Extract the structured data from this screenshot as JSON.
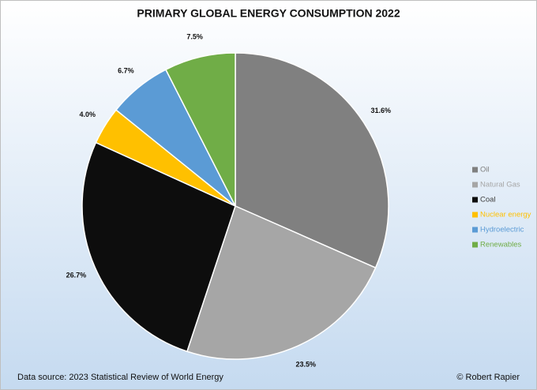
{
  "chart_data": {
    "type": "pie",
    "title": "PRIMARY GLOBAL ENERGY CONSUMPTION 2022",
    "source": "Data source: 2023 Statistical Review of World Energy",
    "credit": "© Robert Rapier",
    "categories": [
      "Oil",
      "Natural Gas",
      "Coal",
      "Nuclear energy",
      "Hydroelectric",
      "Renewables"
    ],
    "values": [
      31.6,
      23.5,
      26.7,
      4.0,
      6.7,
      7.5
    ],
    "value_labels": [
      "31.6%",
      "23.5%",
      "26.7%",
      "4.0%",
      "6.7%",
      "7.5%"
    ],
    "colors": [
      "#808080",
      "#a6a6a6",
      "#0d0d0d",
      "#ffc000",
      "#5b9bd5",
      "#70ad47"
    ],
    "legend": "right"
  }
}
